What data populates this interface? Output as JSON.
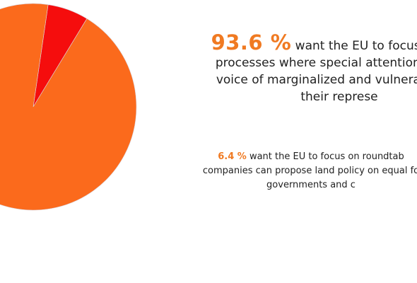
{
  "chart_data": {
    "type": "pie",
    "slices": [
      {
        "label": "93.6 %",
        "value": 93.6,
        "color": "#fb6a1c"
      },
      {
        "label": "6.4 %",
        "value": 6.4,
        "color": "#f50d0d"
      }
    ]
  },
  "annotations": {
    "major": {
      "percent": "93.6 %",
      "line1": " want the EU to focus on part",
      "line2": "processes where special attention is give",
      "line3": "voice of marginalized and vulnerable gro",
      "line4": "their represe"
    },
    "minor": {
      "percent": "6.4 %",
      "line1": " want the EU to focus on roundtab",
      "line2": "companies can propose land policy on equal fo",
      "line3": "governments and c"
    }
  }
}
